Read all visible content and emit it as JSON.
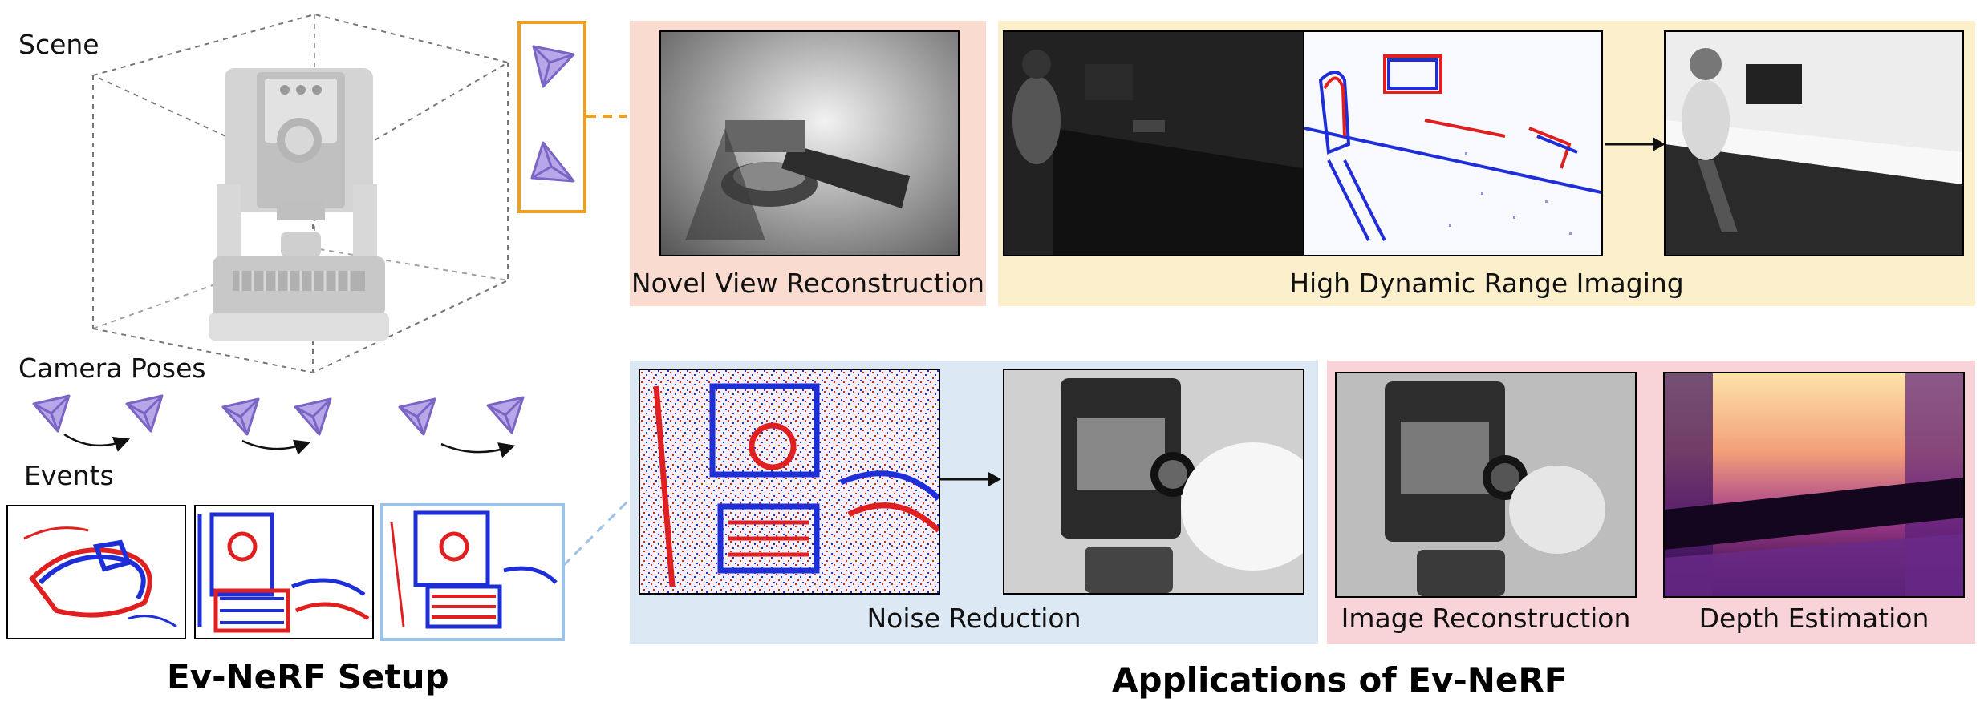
{
  "setup": {
    "scene_label": "Scene",
    "camera_poses_label": "Camera Poses",
    "events_label": "Events",
    "title": "Ev-NeRF Setup"
  },
  "applications": {
    "title": "Applications of Ev-NeRF",
    "novel_view": {
      "caption": "Novel View Reconstruction",
      "color": "#fadbd0"
    },
    "hdr": {
      "caption": "High Dynamic Range Imaging",
      "color": "#fcefcc"
    },
    "noise": {
      "caption": "Noise Reduction",
      "color": "#dce8f4"
    },
    "recon_depth": {
      "caption_left": "Image Reconstruction",
      "caption_right": "Depth Estimation",
      "color": "#f8d4d8"
    }
  },
  "colors": {
    "camera": "#9b85d6",
    "highlight_box": "#f0a020",
    "event_red": "#e02020",
    "event_blue": "#1f2fd8",
    "selected_event_border": "#9cc3e6"
  }
}
